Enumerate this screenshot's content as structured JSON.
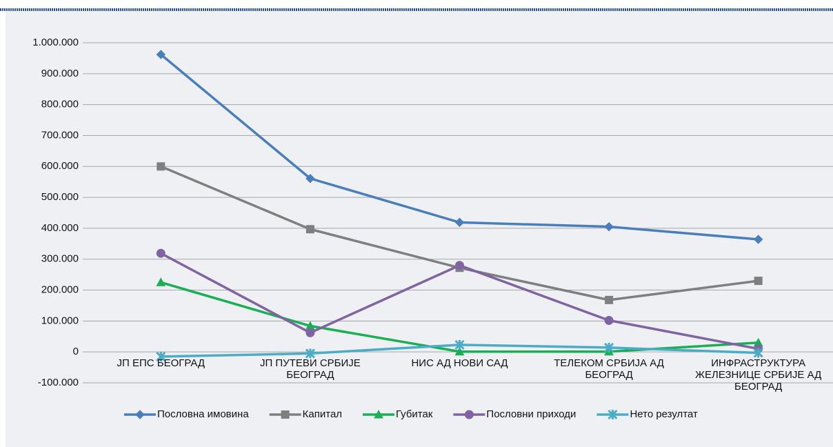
{
  "chart_data": {
    "type": "line",
    "categories": [
      "ЈП ЕПС БЕОГРАД",
      "ЈП ПУТЕВИ СРБИЈЕ БЕОГРАД",
      "НИС АД НОВИ САД",
      "ТЕЛЕКОМ СРБИЈА АД БЕОГРАД",
      "ИНФРАСТРУКТУРА ЖЕЛЕЗНИЦЕ СРБИЈЕ АД БЕОГРАД"
    ],
    "series": [
      {
        "name": "Пословна имовина",
        "color": "#4a7ebb",
        "marker": "diamond",
        "values": [
          962000,
          561000,
          419000,
          405000,
          364000
        ]
      },
      {
        "name": "Капитал",
        "color": "#7f7f7f",
        "marker": "square",
        "values": [
          600000,
          397000,
          272000,
          168000,
          230000
        ]
      },
      {
        "name": "Губитак",
        "color": "#1aaf54",
        "marker": "triangle",
        "values": [
          225000,
          84000,
          1000,
          1000,
          30000
        ]
      },
      {
        "name": "Пословни приходи",
        "color": "#8064a2",
        "marker": "circle",
        "values": [
          319000,
          62000,
          280000,
          102000,
          10000
        ]
      },
      {
        "name": "Нето резултат",
        "color": "#4bacc6",
        "marker": "star",
        "values": [
          -15000,
          -5000,
          23000,
          14000,
          -3000
        ]
      }
    ],
    "ylim": [
      -100000,
      1000000
    ],
    "yticks": [
      {
        "value": -100000,
        "label": "-100.000"
      },
      0,
      {
        "value": 100000,
        "label": "100.000"
      },
      {
        "value": 200000,
        "label": "200.000"
      },
      {
        "value": 300000,
        "label": "300.000"
      },
      {
        "value": 400000,
        "label": "400.000"
      },
      {
        "value": 500000,
        "label": "500.000"
      },
      {
        "value": 600000,
        "label": "600.000"
      },
      {
        "value": 700000,
        "label": "700.000"
      },
      {
        "value": 800000,
        "label": "800.000"
      },
      {
        "value": 900000,
        "label": "900.000"
      },
      {
        "value": 1000000,
        "label": "1.000.000"
      }
    ],
    "grid": true,
    "legend": "bottom"
  }
}
